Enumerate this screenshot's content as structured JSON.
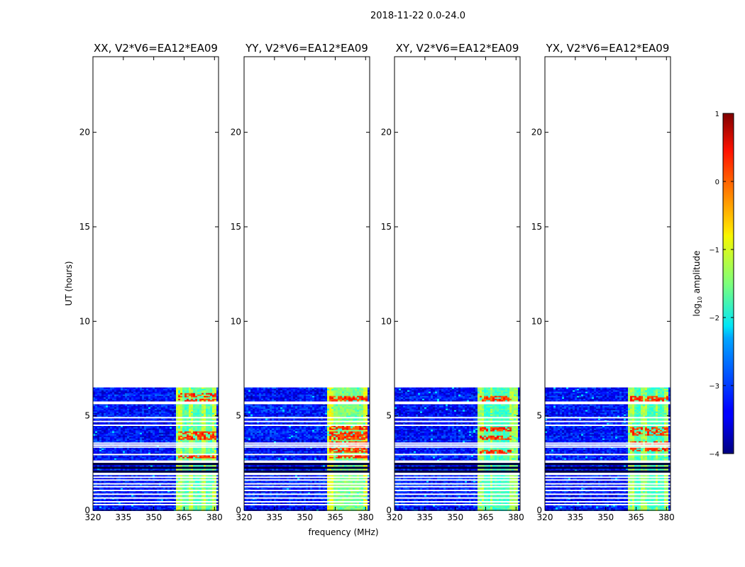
{
  "figure_title": "2018-11-22 0.0-24.0",
  "chart_data": {
    "type": "heatmap",
    "title": "2018-11-22 0.0-24.0",
    "xlabel": "frequency (MHz)",
    "ylabel": "UT (hours)",
    "xlim": [
      320,
      382
    ],
    "ylim": [
      0,
      24
    ],
    "x_ticks": [
      320,
      335,
      350,
      365,
      380
    ],
    "x_tick_labels": [
      "320",
      "335",
      "350",
      "365",
      "380"
    ],
    "y_ticks": [
      0,
      5,
      10,
      15,
      20
    ],
    "y_tick_labels": [
      "0",
      "5",
      "10",
      "15",
      "20"
    ],
    "data_extent_hours": [
      0,
      6.5
    ],
    "panels": [
      {
        "id": "xx",
        "title": "XX, V2*V6=EA12*EA09",
        "band_level": -1.2,
        "hot_rows": [
          6.1,
          5.8,
          4.1,
          3.9,
          2.9
        ],
        "hot_cols": [
          365,
          371,
          377
        ]
      },
      {
        "id": "yy",
        "title": "YY, V2*V6=EA12*EA09",
        "band_level": -1.0,
        "hot_rows": [
          6.0,
          5.8,
          4.4,
          4.1,
          3.9,
          3.6,
          3.4,
          3.2,
          2.9
        ],
        "hot_cols": [
          365,
          369,
          373,
          377
        ]
      },
      {
        "id": "xy",
        "title": "XY, V2*V6=EA12*EA09",
        "band_level": -1.3,
        "hot_rows": [
          6.0,
          5.8,
          4.3,
          3.9,
          3.1
        ],
        "hot_cols": [
          365,
          370,
          374
        ]
      },
      {
        "id": "yx",
        "title": "YX, V2*V6=EA12*EA09",
        "band_level": -1.3,
        "hot_rows": [
          6.0,
          5.8,
          4.3,
          4.1,
          3.6,
          3.3
        ],
        "hot_cols": [
          365,
          372,
          377
        ]
      }
    ],
    "background_level": -3.3,
    "rfi_band_mhz": [
      361.5,
      380.5
    ],
    "white_gap_rows_hours": [
      5.65,
      5.72,
      4.9,
      4.7,
      4.5,
      3.55,
      3.45,
      3.35,
      2.95,
      2.6,
      2.55,
      1.95,
      1.9,
      1.75,
      1.6,
      1.4,
      1.25,
      1.05,
      0.85,
      0.65,
      0.45,
      0.3
    ],
    "dark_rows_hours": [
      2.45,
      2.25,
      2.05
    ],
    "colorbar": {
      "label_prefix": "log",
      "label_subscript": "10",
      "label_suffix": " amplitude",
      "range": [
        -4,
        1
      ],
      "ticks": [
        1,
        0,
        -1,
        -2,
        -3,
        -4
      ],
      "tick_labels": [
        "1",
        "0",
        "−1",
        "−2",
        "−3",
        "−4"
      ],
      "colormap": "jet"
    }
  }
}
